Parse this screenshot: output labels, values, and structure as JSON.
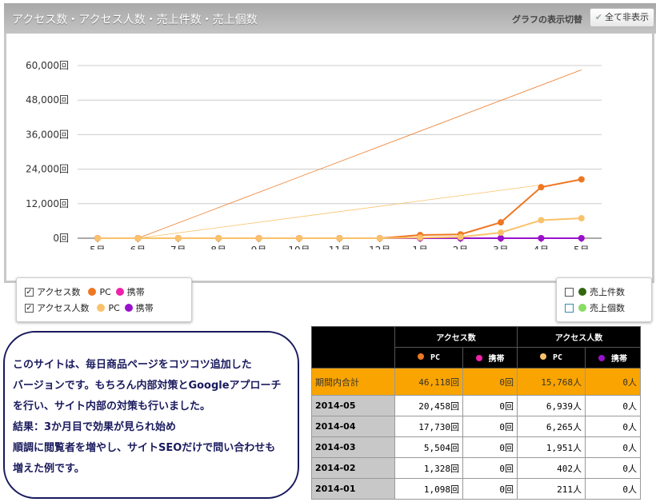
{
  "header": {
    "title": "アクセス数・アクセス人数・売上件数・売上個数",
    "switch_label": "グラフの表示切替",
    "hide_all_button": "全て非表示"
  },
  "legend_left": {
    "rows": [
      {
        "label": "アクセス数",
        "checked": true,
        "pc": "PC",
        "mobile": "携帯",
        "pc_color": "#ee7722",
        "mobile_color": "#ee22aa"
      },
      {
        "label": "アクセス人数",
        "checked": true,
        "pc": "PC",
        "mobile": "携帯",
        "pc_color": "#f9c26a",
        "mobile_color": "#9911cc"
      }
    ]
  },
  "legend_right": {
    "rows": [
      {
        "label": "売上件数",
        "checked": false,
        "color": "#336611"
      },
      {
        "label": "売上個数",
        "checked": false,
        "color": "#88dd66"
      }
    ]
  },
  "chart_data": {
    "type": "line",
    "categories": [
      "5月",
      "6月",
      "7月",
      "8月",
      "9月",
      "10月",
      "11月",
      "12月",
      "1月",
      "2月",
      "3月",
      "4月",
      "5月"
    ],
    "y_ticks": [
      "0回",
      "12,000回",
      "24,000回",
      "36,000回",
      "48,000回",
      "60,000回"
    ],
    "ylim": [
      0,
      60000
    ],
    "grid": true,
    "series": [
      {
        "name": "アクセス数 PC",
        "color": "#ee7722",
        "values": [
          0,
          0,
          0,
          0,
          0,
          0,
          0,
          0,
          1098,
          1328,
          5504,
          17730,
          20458
        ]
      },
      {
        "name": "アクセス数 携帯",
        "color": "#ee22aa",
        "values": [
          0,
          0,
          0,
          0,
          0,
          0,
          0,
          0,
          0,
          0,
          0,
          0,
          0
        ]
      },
      {
        "name": "アクセス人数 PC",
        "color": "#f9c26a",
        "values": [
          0,
          0,
          0,
          0,
          0,
          0,
          0,
          0,
          211,
          402,
          1951,
          6265,
          6939
        ]
      },
      {
        "name": "アクセス人数 携帯",
        "color": "#9911cc",
        "values": [
          0,
          0,
          0,
          0,
          0,
          0,
          0,
          0,
          0,
          0,
          0,
          0,
          0
        ]
      }
    ],
    "trend_lines": [
      {
        "color": "#ee7722",
        "from": [
          "6月",
          0
        ],
        "to": [
          "5月",
          58500
        ]
      },
      {
        "color": "#f9c26a",
        "from": [
          "6月",
          0
        ],
        "to": [
          "4月",
          18500
        ]
      }
    ]
  },
  "note": {
    "lines": [
      "このサイトは、毎日商品ページをコツコツ追加した",
      "バージョンです。もちろん内部対策とGoogleアプローチ",
      "を行い、サイト内部の対策も行いました。",
      "結果：3か月目で効果が見られ始め",
      "順調に閲覧者を増やし、サイトSEOだけで問い合わせも",
      "増えた例です。"
    ]
  },
  "table": {
    "group_headers": [
      "アクセス数",
      "アクセス人数"
    ],
    "sub_headers": [
      "PC",
      "携帯",
      "PC",
      "携帯"
    ],
    "sub_colors": [
      "#ee7722",
      "#ee22aa",
      "#f9c26a",
      "#9911cc"
    ],
    "total": {
      "label": "期間内合計",
      "values": [
        "46,118回",
        "0回",
        "15,768人",
        "0人"
      ]
    },
    "rows": [
      {
        "label": "2014-05",
        "values": [
          "20,458回",
          "0回",
          "6,939人",
          "0人"
        ]
      },
      {
        "label": "2014-04",
        "values": [
          "17,730回",
          "0回",
          "6,265人",
          "0人"
        ]
      },
      {
        "label": "2014-03",
        "values": [
          "5,504回",
          "0回",
          "1,951人",
          "0人"
        ]
      },
      {
        "label": "2014-02",
        "values": [
          "1,328回",
          "0回",
          "402人",
          "0人"
        ]
      },
      {
        "label": "2014-01",
        "values": [
          "1,098回",
          "0回",
          "211人",
          "0人"
        ]
      }
    ]
  }
}
